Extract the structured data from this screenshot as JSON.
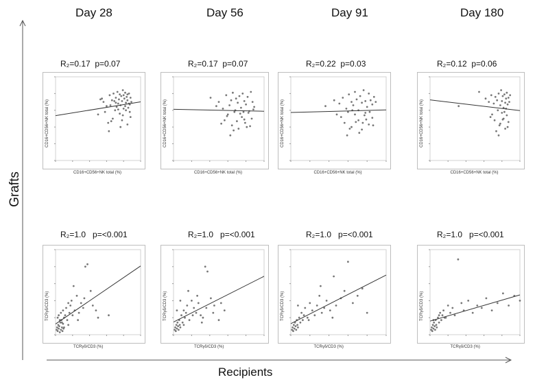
{
  "figure": {
    "day_labels": [
      "Day 28",
      "Day 56",
      "Day 91",
      "Day 180"
    ],
    "y_axis_label": "Grafts",
    "x_axis_label": "Recipients"
  },
  "chart_data": [
    {
      "type": "scatter",
      "row": "top",
      "day": "Day 28",
      "stat_text": "R₂=0.17  p=0.07",
      "xlabel": "CD16+CD56+NK total (%)",
      "ylabel": "CD16+CD56+NK total (%)",
      "x": [
        62,
        66,
        70,
        73,
        75,
        77,
        78,
        80,
        81,
        82,
        83,
        84,
        85,
        86,
        87,
        88,
        89,
        90,
        91,
        92,
        93,
        94,
        95,
        96,
        97,
        98,
        55,
        58,
        64,
        68,
        71,
        74,
        76,
        79,
        83,
        86,
        88,
        91,
        93,
        95,
        97,
        60,
        72,
        78,
        84,
        90,
        96,
        69,
        81,
        87,
        93
      ],
      "y": [
        70,
        65,
        78,
        72,
        80,
        60,
        75,
        82,
        68,
        73,
        79,
        66,
        77,
        71,
        84,
        62,
        74,
        81,
        69,
        76,
        72,
        63,
        80,
        67,
        75,
        70,
        55,
        73,
        58,
        45,
        66,
        50,
        71,
        64,
        56,
        48,
        78,
        60,
        43,
        68,
        52,
        74,
        47,
        69,
        40,
        65,
        58,
        35,
        61,
        54,
        79
      ]
    },
    {
      "type": "scatter",
      "row": "top",
      "day": "Day 56",
      "stat_text": "R₂=0.17  p=0.07",
      "xlabel": "CD16+CD56+NK total (%)",
      "ylabel": "CD16+CD56+NK total (%)",
      "x": [
        45,
        55,
        60,
        64,
        68,
        70,
        72,
        74,
        76,
        78,
        80,
        82,
        84,
        86,
        88,
        90,
        92,
        94,
        96,
        98,
        62,
        66,
        71,
        75,
        79,
        83,
        87,
        91,
        95,
        58,
        73,
        81,
        89,
        97,
        65,
        77,
        85,
        93,
        52,
        69,
        86
      ],
      "y": [
        75,
        70,
        62,
        78,
        66,
        72,
        81,
        58,
        74,
        69,
        77,
        63,
        80,
        71,
        67,
        76,
        59,
        82,
        70,
        64,
        48,
        55,
        42,
        60,
        38,
        52,
        45,
        57,
        50,
        44,
        36,
        56,
        40,
        61,
        53,
        47,
        58,
        41,
        65,
        30,
        49
      ]
    },
    {
      "type": "scatter",
      "row": "top",
      "day": "Day 91",
      "stat_text": "R₂=0.22  p=0.03",
      "xlabel": "CD16+CD56+NK total (%)",
      "ylabel": "CD16+CD56+NK total (%)",
      "x": [
        40,
        50,
        56,
        60,
        64,
        67,
        70,
        72,
        74,
        76,
        78,
        80,
        82,
        84,
        86,
        88,
        90,
        92,
        94,
        96,
        98,
        58,
        62,
        66,
        70,
        74,
        78,
        82,
        86,
        90,
        94,
        65,
        75,
        85,
        95,
        71,
        79,
        87,
        53,
        68,
        83,
        91
      ],
      "y": [
        65,
        72,
        68,
        75,
        62,
        79,
        70,
        66,
        82,
        73,
        60,
        77,
        69,
        84,
        71,
        64,
        80,
        72,
        67,
        76,
        70,
        52,
        45,
        58,
        40,
        55,
        48,
        37,
        57,
        43,
        51,
        30,
        46,
        54,
        42,
        60,
        33,
        49,
        55,
        38,
        45,
        58
      ]
    },
    {
      "type": "scatter",
      "row": "top",
      "day": "Day 180",
      "stat_text": "R₂=0.12  p=0.06",
      "xlabel": "CD16+CD56+NK total (%)",
      "ylabel": "CD16+CD56+NK total (%)",
      "x": [
        35,
        60,
        68,
        72,
        75,
        78,
        80,
        82,
        84,
        86,
        87,
        88,
        89,
        90,
        91,
        92,
        93,
        94,
        95,
        96,
        97,
        98,
        76,
        79,
        83,
        85,
        88,
        90,
        92,
        94,
        96,
        81,
        86,
        91,
        95,
        74,
        84,
        89,
        93
      ],
      "y": [
        65,
        82,
        74,
        70,
        78,
        68,
        76,
        72,
        80,
        66,
        84,
        71,
        77,
        63,
        79,
        69,
        74,
        81,
        67,
        75,
        70,
        78,
        55,
        48,
        60,
        42,
        57,
        50,
        38,
        54,
        46,
        35,
        44,
        58,
        40,
        52,
        30,
        49,
        62
      ]
    },
    {
      "type": "scatter",
      "row": "bottom",
      "day": "Day 28",
      "stat_text": "R₂=1.0   p=<0.001",
      "xlabel": "TCRγδ/CD3 (%)",
      "ylabel": "TCRγδ/CD3 (%)",
      "x": [
        1,
        1.5,
        2,
        2.5,
        3,
        3.5,
        4,
        4.5,
        5,
        5.5,
        6,
        6.5,
        7,
        7.5,
        8,
        2,
        3,
        4,
        5,
        6,
        7,
        8,
        9,
        10,
        11,
        12,
        13,
        14,
        15,
        16,
        18,
        20,
        22,
        24,
        26,
        28,
        30,
        35,
        38,
        40,
        50,
        12,
        17,
        21,
        27,
        33
      ],
      "y": [
        2,
        3,
        1.5,
        4,
        2.5,
        3.5,
        1,
        5,
        2,
        6,
        3,
        1.5,
        4.5,
        2.5,
        3,
        7,
        8,
        6,
        9,
        5,
        10,
        7,
        8,
        11,
        6,
        13,
        9,
        12,
        14,
        8,
        10,
        16,
        9,
        13,
        11,
        28,
        29,
        12,
        10,
        7,
        8,
        4,
        20,
        6,
        15,
        18
      ]
    },
    {
      "type": "scatter",
      "row": "bottom",
      "day": "Day 56",
      "stat_text": "R₂=1.0   p=<0.001",
      "xlabel": "TCRγδ/CD3 (%)",
      "ylabel": "TCRγδ/CD3 (%)",
      "x": [
        1,
        1.5,
        2,
        2.5,
        3,
        3.5,
        4,
        4.5,
        5,
        5.5,
        6,
        7,
        8,
        9,
        10,
        11,
        12,
        14,
        16,
        18,
        20,
        22,
        24,
        26,
        28,
        30,
        33,
        36,
        40,
        45,
        3,
        6,
        9,
        13,
        17,
        21,
        25,
        29,
        35,
        42
      ],
      "y": [
        2,
        3,
        1.5,
        4,
        2.5,
        5,
        3.5,
        2,
        6,
        4,
        3,
        8,
        5,
        10,
        7,
        9,
        12,
        6,
        14,
        11,
        9,
        13,
        8,
        7,
        28,
        26,
        15,
        12,
        6,
        10,
        10,
        14,
        4,
        18,
        8,
        16,
        5,
        11,
        9,
        13
      ]
    },
    {
      "type": "scatter",
      "row": "bottom",
      "day": "Day 91",
      "stat_text": "R₂=1.0   p=<0.001",
      "xlabel": "TCRγδ/CD3 (%)",
      "ylabel": "TCRγδ/CD3 (%)",
      "x": [
        1,
        1.5,
        2,
        2.5,
        3,
        3.5,
        4,
        4.5,
        5,
        5.5,
        6,
        7,
        8,
        9,
        10,
        11,
        12,
        14,
        16,
        18,
        20,
        22,
        24,
        26,
        28,
        30,
        33,
        36,
        38,
        42,
        45,
        48,
        52,
        56,
        60,
        64,
        6,
        15,
        25,
        35
      ],
      "y": [
        2,
        3,
        1.5,
        4,
        2.5,
        5,
        3.5,
        2,
        6,
        4,
        3,
        7,
        5,
        9,
        6,
        8,
        11,
        7,
        13,
        10,
        8,
        12,
        16,
        9,
        11,
        14,
        10,
        24,
        12,
        15,
        18,
        30,
        13,
        16,
        19,
        9,
        12,
        6,
        20,
        7
      ]
    },
    {
      "type": "scatter",
      "row": "bottom",
      "day": "Day 180",
      "stat_text": "R₂=1.0   p=<0.001",
      "xlabel": "TCRγδ/CD3 (%)",
      "ylabel": "TCRγδ/CD3 (%)",
      "x": [
        1,
        1.5,
        2,
        2.5,
        3,
        3.5,
        4,
        4.5,
        5,
        5.5,
        6,
        7,
        8,
        9,
        10,
        11,
        12,
        14,
        16,
        18,
        20,
        22,
        25,
        28,
        30,
        34,
        38,
        42,
        46,
        50,
        55,
        60,
        65,
        70,
        75,
        80,
        85,
        3,
        8,
        13
      ],
      "y": [
        2,
        3,
        1.5,
        4,
        2.5,
        5,
        3.5,
        2,
        6,
        4,
        3,
        7,
        5,
        9,
        6,
        8,
        10,
        7,
        12,
        9,
        11,
        8,
        31,
        13,
        10,
        14,
        9,
        12,
        11,
        15,
        10,
        13,
        17,
        12,
        16,
        14,
        11,
        6,
        8,
        7
      ]
    }
  ]
}
